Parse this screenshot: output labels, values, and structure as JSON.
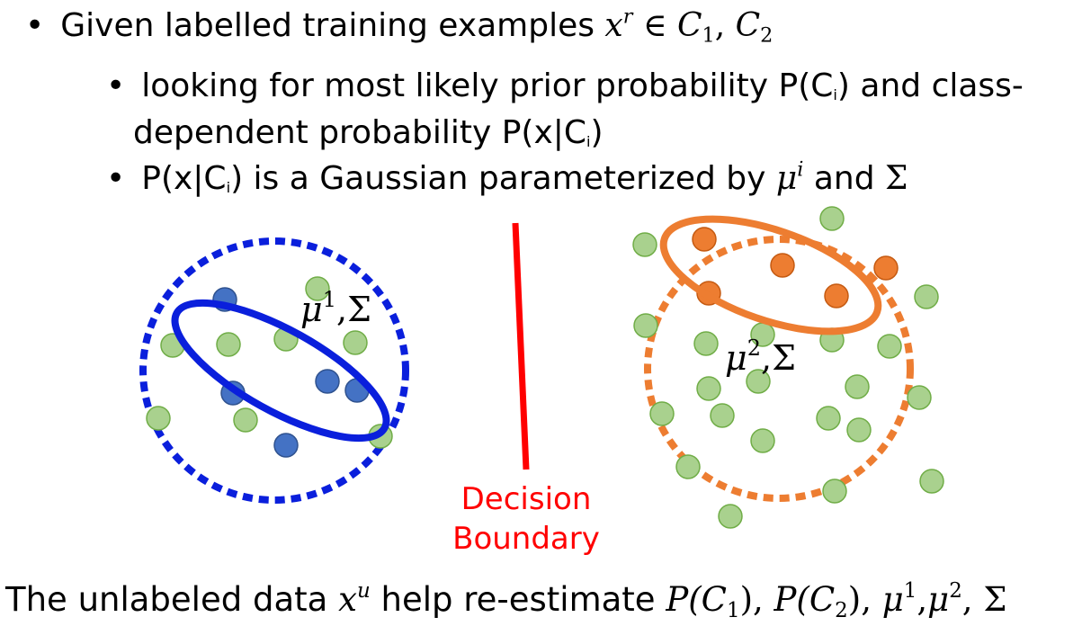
{
  "bullets": {
    "b1": {
      "text": "Given labelled training examples ",
      "math_x": "x",
      "math_r": "r",
      "math_in": " ∈ ",
      "c1": "C",
      "c1_sub": "1",
      "comma": ", ",
      "c2": "C",
      "c2_sub": "2"
    },
    "b2": {
      "line1_a": "looking for most likely prior probability P(C",
      "line1_sub": "i",
      "line1_b": ") and class-",
      "line2_a": "dependent probability P(x|C",
      "line2_sub": "i",
      "line2_b": ")"
    },
    "b3": {
      "a": "P(x|C",
      "a_sub": "i",
      "b": ") is a Gaussian parameterized by ",
      "mu": "μ",
      "mu_sup": "i",
      "and": " and ",
      "sigma": "Σ"
    }
  },
  "diagram": {
    "label_left": {
      "mu": "μ",
      "sup": "1",
      "rest": ",Σ"
    },
    "label_right": {
      "mu": "μ",
      "sup": "2",
      "rest": ",Σ"
    },
    "decision_line1": "Decision",
    "decision_line2": "Boundary",
    "colors": {
      "blue": "#0a1fdc",
      "orange": "#ed7d31",
      "green_fill": "#a9d18e",
      "green_stroke": "#70ad47",
      "blue_dot": "#4472c4",
      "red": "#ff0000"
    }
  },
  "bottom": {
    "a": "The unlabeled data ",
    "x": "x",
    "x_sup": "u",
    "b": " help re-estimate ",
    "p1": "P(C",
    "p1_sub": "1",
    "p1_close": "), ",
    "p2": "P(C",
    "p2_sub": "2",
    "p2_close": "), ",
    "mu1": "μ",
    "mu1_sup": "1",
    "c": ",",
    "mu2": "μ",
    "mu2_sup": "2",
    "d": ", ",
    "sigma": "Σ"
  }
}
